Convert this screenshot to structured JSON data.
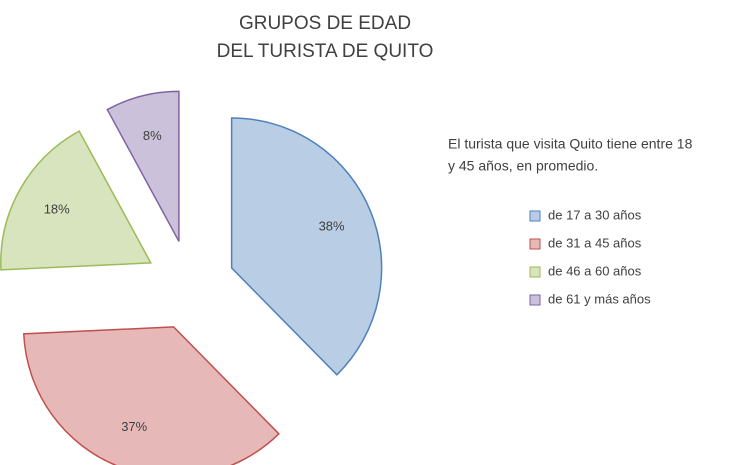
{
  "chart_data": {
    "type": "pie",
    "title": [
      "GRUPOS DE EDAD",
      "DEL TURISTA DE QUITO"
    ],
    "annotation": [
      "El turista que visita Quito tiene entre 18",
      "y 45 años, en promedio."
    ],
    "categories": [
      "de 17 a 30 años",
      "de 31 a 45 años",
      "de 46 a 60 años",
      "de 61 y más años"
    ],
    "values": [
      38,
      37,
      18,
      8
    ],
    "value_labels": [
      "38%",
      "37%",
      "18%",
      "8%"
    ],
    "colors": [
      "#4f81bd",
      "#c0504d",
      "#9bbb59",
      "#8064a2"
    ],
    "exploded": true,
    "legend": "right"
  }
}
